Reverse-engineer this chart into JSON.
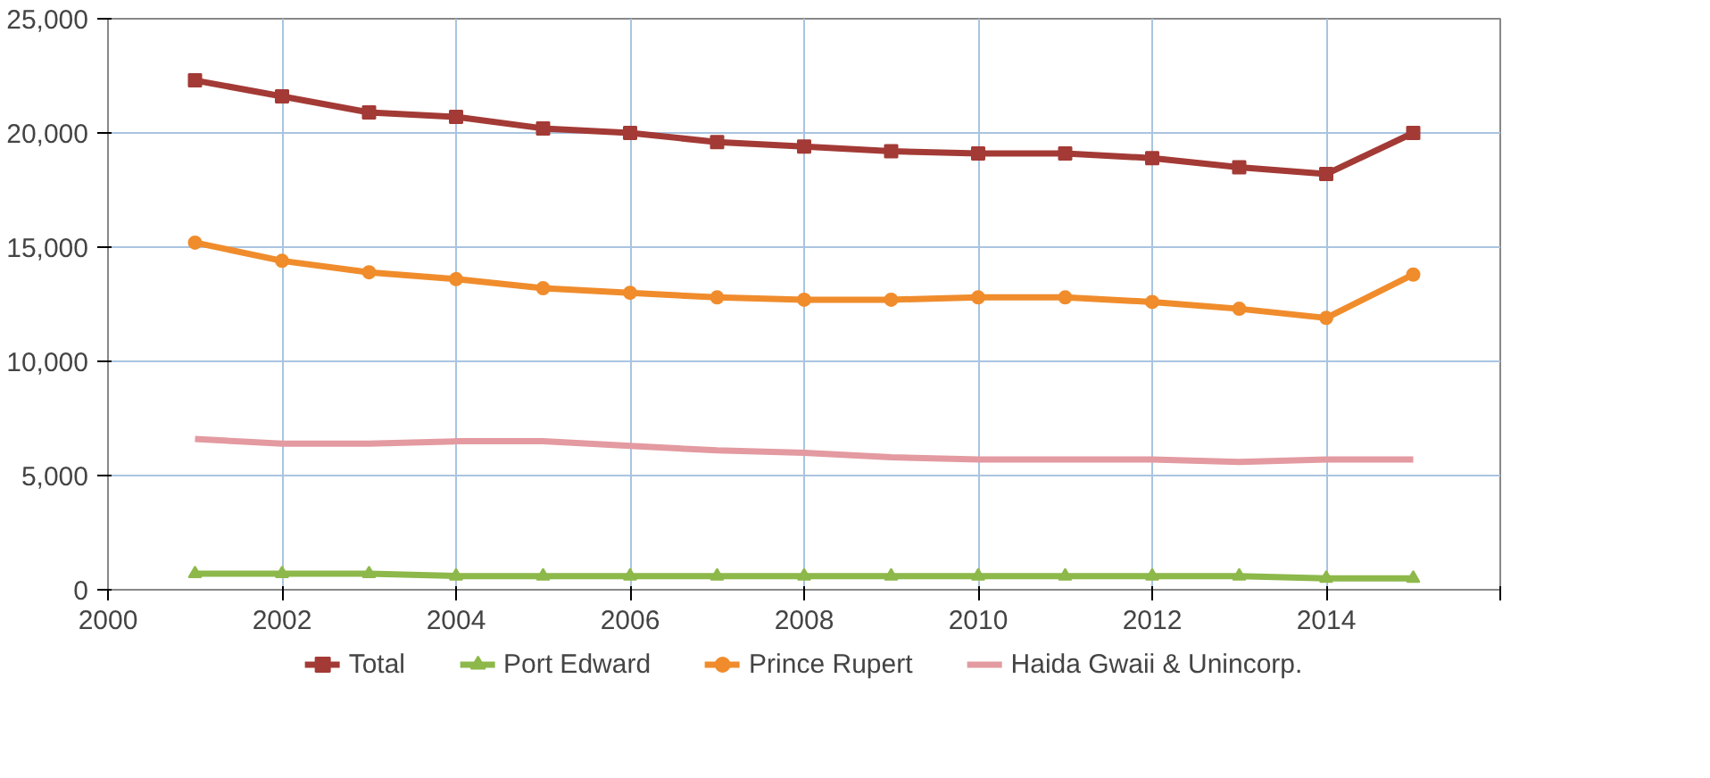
{
  "chart_data": {
    "type": "line",
    "x": [
      2001,
      2002,
      2003,
      2004,
      2005,
      2006,
      2007,
      2008,
      2009,
      2010,
      2011,
      2012,
      2013,
      2014,
      2015
    ],
    "series": [
      {
        "name": "Total",
        "color": "#a33a35",
        "marker": "square",
        "values": [
          22300,
          21600,
          20900,
          20700,
          20200,
          20000,
          19600,
          19400,
          19200,
          19100,
          19100,
          18900,
          18500,
          18200,
          20000
        ]
      },
      {
        "name": "Port Edward",
        "color": "#8db84a",
        "marker": "triangle",
        "values": [
          700,
          700,
          700,
          600,
          600,
          600,
          600,
          600,
          600,
          600,
          600,
          600,
          600,
          500,
          500
        ]
      },
      {
        "name": "Prince Rupert",
        "color": "#f08c2c",
        "marker": "circle",
        "values": [
          15200,
          14400,
          13900,
          13600,
          13200,
          13000,
          12800,
          12700,
          12700,
          12800,
          12800,
          12600,
          12300,
          11900,
          13800
        ]
      },
      {
        "name": "Haida Gwaii & Unincorp.",
        "color": "#e39aa0",
        "marker": "none",
        "values": [
          6600,
          6400,
          6400,
          6500,
          6500,
          6300,
          6100,
          6000,
          5800,
          5700,
          5700,
          5700,
          5600,
          5700,
          5700
        ]
      }
    ],
    "xlim": [
      2000,
      2016
    ],
    "xticks": [
      2000,
      2002,
      2004,
      2006,
      2008,
      2010,
      2012,
      2014,
      {
        "value": 2016,
        "label": null
      }
    ],
    "ylim": [
      0,
      25000
    ],
    "yticks": [
      {
        "value": 0,
        "label": "0"
      },
      {
        "value": 5000,
        "label": "5,000"
      },
      {
        "value": 10000,
        "label": "10,000"
      },
      {
        "value": 15000,
        "label": "15,000"
      },
      {
        "value": 20000,
        "label": "20,000"
      },
      {
        "value": 25000,
        "label": "25,000"
      }
    ],
    "grid": true,
    "legend": "bottom",
    "line_style": "solid"
  }
}
